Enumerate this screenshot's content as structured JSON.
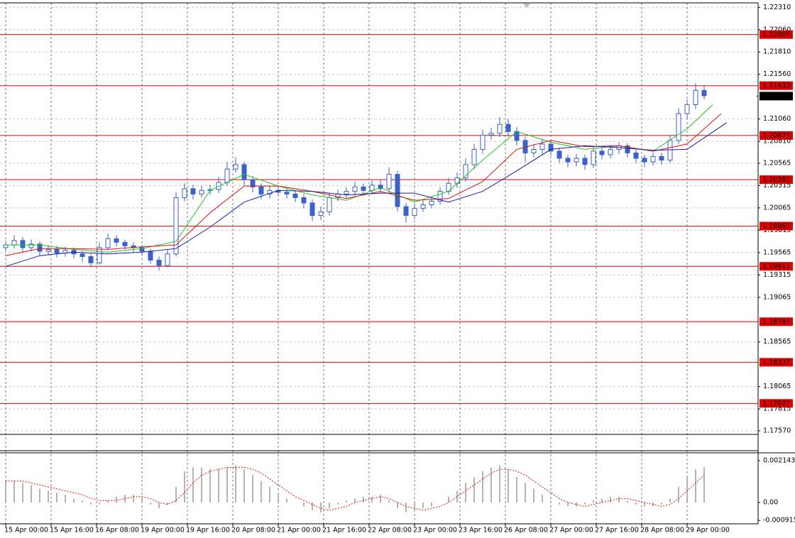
{
  "chart_data": [
    {
      "type": "candlestick",
      "color": "#3a62c8",
      "x": [
        0,
        3,
        6,
        9,
        12,
        15,
        18,
        21,
        24,
        27,
        30,
        33,
        36,
        39,
        42,
        45,
        48,
        51,
        54,
        57,
        60,
        63,
        66,
        69,
        72,
        75,
        78,
        81,
        84,
        87,
        90,
        93,
        96,
        99,
        102,
        105,
        108,
        111,
        114,
        117,
        120,
        123,
        126,
        129,
        132,
        135,
        138,
        141,
        144,
        147,
        150,
        153,
        156,
        159,
        162,
        165,
        168,
        171,
        174,
        177,
        180,
        183,
        186,
        189,
        192,
        195,
        198,
        201,
        204,
        207,
        210,
        213,
        216,
        219,
        222,
        225,
        228,
        231,
        234,
        237,
        240,
        243,
        246
      ],
      "open": [
        1.1962,
        1.1965,
        1.197,
        1.1962,
        1.1966,
        1.1958,
        1.196,
        1.1956,
        1.1959,
        1.1955,
        1.1952,
        1.1945,
        1.1962,
        1.1972,
        1.1968,
        1.1964,
        1.1962,
        1.1958,
        1.1948,
        1.1942,
        1.1955,
        1.2018,
        1.2028,
        1.2022,
        1.2026,
        1.2027,
        1.2035,
        1.205,
        1.2055,
        1.2038,
        1.203,
        1.2022,
        1.2026,
        1.2024,
        1.2022,
        1.2018,
        1.2012,
        1.1998,
        1.2002,
        1.2018,
        1.2022,
        1.2025,
        1.203,
        1.2026,
        1.2032,
        1.2028,
        1.2044,
        1.2008,
        1.1998,
        1.2006,
        1.201,
        1.2014,
        1.2025,
        1.2034,
        1.204,
        1.2055,
        1.2072,
        1.2088,
        1.209,
        1.21,
        1.2092,
        1.2082,
        1.2068,
        1.2072,
        1.2078,
        1.207,
        1.2062,
        1.2058,
        1.2062,
        1.2055,
        1.207,
        1.2066,
        1.2072,
        1.2076,
        1.2068,
        1.2062,
        1.2058,
        1.2064,
        1.206,
        1.2082,
        1.2112,
        1.2122,
        1.2138
      ],
      "high": [
        1.197,
        1.1976,
        1.1974,
        1.1971,
        1.1969,
        1.1965,
        1.1964,
        1.1963,
        1.1962,
        1.1958,
        1.1955,
        1.1968,
        1.1978,
        1.1976,
        1.1971,
        1.1968,
        1.1965,
        1.1961,
        1.1952,
        1.196,
        1.2024,
        1.2034,
        1.2032,
        1.2031,
        1.2032,
        1.2041,
        1.2058,
        1.2063,
        1.2058,
        1.2042,
        1.2034,
        1.2031,
        1.203,
        1.2028,
        1.2026,
        1.2022,
        1.2016,
        1.2008,
        1.2023,
        1.2027,
        1.203,
        1.2036,
        1.2034,
        1.2037,
        1.2038,
        1.2052,
        1.2048,
        1.2012,
        1.2011,
        1.2015,
        1.2019,
        1.203,
        1.204,
        1.2046,
        1.2062,
        1.2078,
        1.2094,
        1.2096,
        1.2108,
        1.2106,
        1.2097,
        1.2086,
        1.2078,
        1.2084,
        1.2082,
        1.2074,
        1.2066,
        1.2067,
        1.2066,
        1.2076,
        1.2074,
        1.2077,
        1.208,
        1.2079,
        1.2072,
        1.2066,
        1.2069,
        1.2068,
        1.2087,
        1.2118,
        1.2128,
        1.2146,
        1.2143
      ],
      "low": [
        1.1958,
        1.1961,
        1.1957,
        1.1958,
        1.1953,
        1.1954,
        1.1951,
        1.1952,
        1.195,
        1.1946,
        1.194,
        1.1943,
        1.1959,
        1.1963,
        1.196,
        1.1957,
        1.1953,
        1.1944,
        1.1936,
        1.194,
        1.1952,
        1.2014,
        1.2016,
        1.2018,
        1.2021,
        1.2023,
        1.2031,
        1.2046,
        1.2032,
        1.2024,
        1.2016,
        1.2017,
        1.2019,
        1.2017,
        1.2013,
        1.2006,
        1.1992,
        1.1993,
        1.1998,
        1.2014,
        1.2017,
        1.202,
        1.2021,
        1.2022,
        1.2023,
        1.2024,
        1.2002,
        1.199,
        1.1994,
        1.2002,
        1.2006,
        1.201,
        1.2021,
        1.2029,
        1.2036,
        1.205,
        1.2067,
        1.2083,
        1.2086,
        1.2086,
        1.2076,
        1.2058,
        1.2063,
        1.2067,
        1.2065,
        1.2057,
        1.2052,
        1.2053,
        1.2049,
        1.2051,
        1.2061,
        1.2062,
        1.2067,
        1.2063,
        1.2057,
        1.2052,
        1.2054,
        1.2055,
        1.2057,
        1.2078,
        1.2106,
        1.2117,
        1.2128
      ],
      "close": [
        1.1965,
        1.197,
        1.1962,
        1.1966,
        1.1958,
        1.196,
        1.1956,
        1.1959,
        1.1955,
        1.1952,
        1.1945,
        1.1962,
        1.1972,
        1.1968,
        1.1964,
        1.1962,
        1.1958,
        1.1948,
        1.1942,
        1.1955,
        1.2018,
        1.2028,
        1.2022,
        1.2026,
        1.2027,
        1.2035,
        1.205,
        1.2055,
        1.2038,
        1.203,
        1.2022,
        1.2026,
        1.2024,
        1.2022,
        1.2018,
        1.2012,
        1.1998,
        1.2002,
        1.2018,
        1.2022,
        1.2025,
        1.203,
        1.2026,
        1.2032,
        1.2028,
        1.2044,
        1.2008,
        1.1998,
        1.2006,
        1.201,
        1.2014,
        1.2025,
        1.2034,
        1.204,
        1.2055,
        1.2072,
        1.2088,
        1.209,
        1.21,
        1.2092,
        1.2082,
        1.2068,
        1.2072,
        1.2078,
        1.207,
        1.2062,
        1.2058,
        1.2062,
        1.2055,
        1.207,
        1.2066,
        1.2072,
        1.2076,
        1.2068,
        1.2062,
        1.2058,
        1.2064,
        1.206,
        1.2082,
        1.2112,
        1.2122,
        1.2138,
        1.2132
      ],
      "lines": [
        {
          "color": "#1ec81e",
          "x": [
            0,
            12,
            24,
            36,
            48,
            60,
            72,
            84,
            96,
            108,
            120,
            132,
            144,
            156,
            168,
            180,
            192,
            204,
            216,
            228,
            240,
            249
          ],
          "values": [
            1.1965,
            1.1965,
            1.196,
            1.1957,
            1.1961,
            1.1969,
            1.2026,
            1.2044,
            1.2031,
            1.2021,
            1.2015,
            1.2029,
            1.2013,
            1.2025,
            1.206,
            1.2092,
            1.208,
            1.2072,
            1.2076,
            1.207,
            1.2095,
            1.2122
          ]
        },
        {
          "color": "#e01010",
          "x": [
            0,
            12,
            24,
            36,
            48,
            60,
            72,
            84,
            96,
            108,
            120,
            132,
            144,
            156,
            168,
            180,
            192,
            204,
            216,
            228,
            240,
            252
          ],
          "values": [
            1.1953,
            1.1961,
            1.1961,
            1.196,
            1.1963,
            1.1965,
            1.2001,
            1.2031,
            1.2031,
            1.2025,
            1.2017,
            1.2025,
            1.2015,
            1.2017,
            1.2036,
            1.2072,
            1.2082,
            1.2075,
            1.2076,
            1.207,
            1.2078,
            1.2112
          ]
        },
        {
          "color": "#1a1aa8",
          "x": [
            0,
            12,
            24,
            36,
            48,
            60,
            72,
            84,
            96,
            108,
            120,
            132,
            144,
            156,
            168,
            180,
            192,
            204,
            216,
            228,
            240,
            254
          ],
          "values": [
            1.1941,
            1.1953,
            1.1957,
            1.1955,
            1.1957,
            1.1961,
            1.1985,
            1.2013,
            1.2026,
            1.2025,
            1.2021,
            1.2023,
            1.2023,
            1.2013,
            1.2025,
            1.2048,
            1.2072,
            1.2076,
            1.2074,
            1.2071,
            1.2072,
            1.2102
          ]
        }
      ],
      "levels": [
        1.22005,
        1.21433,
        1.20875,
        1.20381,
        1.19861,
        1.19411,
        1.18791,
        1.18337,
        1.17877
      ],
      "level_color": "#e00000",
      "last_price": 1.21316,
      "xlim": [
        -2,
        265
      ],
      "xticks": [
        {
          "value": 0,
          "label": "15 Apr 00:00"
        },
        {
          "value": 16,
          "label": "15 Apr 16:00"
        },
        {
          "value": 32,
          "label": "16 Apr 08:00"
        },
        {
          "value": 48,
          "label": "19 Apr 00:00"
        },
        {
          "value": 64,
          "label": "19 Apr 16:00"
        },
        {
          "value": 80,
          "label": "20 Apr 08:00"
        },
        {
          "value": 96,
          "label": "21 Apr 00:00"
        },
        {
          "value": 112,
          "label": "21 Apr 16:00"
        },
        {
          "value": 128,
          "label": "22 Apr 08:00"
        },
        {
          "value": 144,
          "label": "23 Apr 00:00"
        },
        {
          "value": 160,
          "label": "23 Apr 16:00"
        },
        {
          "value": 176,
          "label": "26 Apr 08:00"
        },
        {
          "value": 192,
          "label": "27 Apr 00:00"
        },
        {
          "value": 208,
          "label": "27 Apr 16:00"
        },
        {
          "value": 224,
          "label": "28 Apr 08:00"
        },
        {
          "value": 240,
          "label": "29 Apr 00:00"
        }
      ],
      "ylim": [
        1.1753,
        1.2236
      ],
      "yticks": [
        {
          "value": 1.2231,
          "label": "1.22310"
        },
        {
          "value": 1.2206,
          "label": "1.22060"
        },
        {
          "value": 1.2181,
          "label": "1.21810"
        },
        {
          "value": 1.2156,
          "label": "1.21560"
        },
        {
          "value": 1.2106,
          "label": "1.21060"
        },
        {
          "value": 1.2081,
          "label": "1.20810"
        },
        1.20565,
        1.20315,
        1.20065,
        1.19815,
        1.19565,
        1.19315,
        1.19065,
        1.18565,
        1.18065,
        1.17815,
        {
          "value": 1.1757,
          "label": "1.17570"
        }
      ],
      "grid": true
    },
    {
      "type": "bar",
      "color": "#b4b4b4",
      "values": [
        0.0011,
        0.0011,
        0.001,
        0.0009,
        0.0007,
        0.0006,
        0.0005,
        0.0004,
        0.0002,
        0.0001,
        -0.0001,
        -0.0001,
        0.0001,
        0.0003,
        0.0004,
        0.0004,
        0.0002,
        -0.0001,
        -0.0003,
        -0.0001,
        0.0008,
        0.0016,
        0.0018,
        0.0018,
        0.0017,
        0.0017,
        0.0018,
        0.0019,
        0.0017,
        0.0014,
        0.0011,
        0.0008,
        0.0005,
        0.0002,
        0,
        -0.0002,
        -0.0004,
        -0.0005,
        -0.0003,
        -0.0001,
        0.0001,
        0.0002,
        0.0003,
        0.0003,
        0.0004,
        0.0001,
        -0.0003,
        -0.0005,
        -0.0004,
        -0.0003,
        -0.0002,
        0,
        0.0003,
        0.0006,
        0.001,
        0.0013,
        0.0016,
        0.0018,
        0.0019,
        0.0017,
        0.0013,
        0.001,
        0.0007,
        0.0004,
        0.0001,
        -0.0001,
        -0.0002,
        -0.0002,
        -0.0001,
        0.0001,
        0.0002,
        0.0003,
        0.0003,
        0.0001,
        -0.0001,
        -0.0002,
        -0.0002,
        -0.0001,
        0.0002,
        0.0008,
        0.0013,
        0.0017,
        0.0018
      ],
      "signal": {
        "color": "#e01010",
        "values": [
          0.0011,
          0.0011,
          0.0011,
          0.001,
          0.0009,
          0.0008,
          0.0007,
          0.0006,
          0.0005,
          0.0004,
          0.0002,
          0.0001,
          0.0001,
          0.0001,
          0.0002,
          0.0003,
          0.0003,
          0.0002,
          0,
          -0.0001,
          0.0001,
          0.0005,
          0.001,
          0.0014,
          0.0016,
          0.0017,
          0.0018,
          0.0018,
          0.0018,
          0.0017,
          0.0015,
          0.0012,
          0.0009,
          0.0006,
          0.0003,
          0.0001,
          -0.0001,
          -0.0003,
          -0.0004,
          -0.0003,
          -0.0002,
          0,
          0.0001,
          0.0002,
          0.0003,
          0.0002,
          0,
          -0.0002,
          -0.0003,
          -0.0004,
          -0.0003,
          -0.0002,
          0,
          0.0003,
          0.0006,
          0.0009,
          0.0012,
          0.0015,
          0.0017,
          0.0017,
          0.0016,
          0.0014,
          0.0011,
          0.0008,
          0.0005,
          0.0002,
          0,
          -0.0001,
          -0.0002,
          -0.0001,
          0,
          0.0001,
          0.0002,
          0.0002,
          0.0001,
          0,
          -0.0001,
          -0.0002,
          -0.0001,
          0.0002,
          0.0006,
          0.001,
          0.0014
        ]
      },
      "ylim": [
        -0.00109,
        0.00247
      ],
      "yticks": [
        0.002143,
        {
          "value": 0,
          "label": "0.00"
        },
        -0.000915
      ]
    }
  ]
}
